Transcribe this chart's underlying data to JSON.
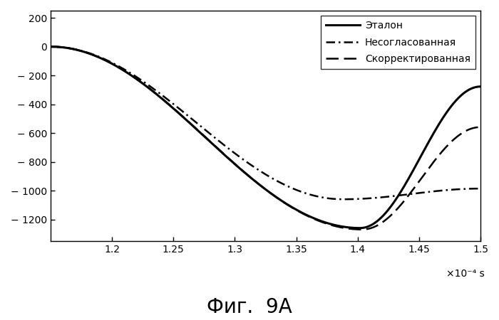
{
  "xlim": [
    0.000115,
    0.00015
  ],
  "ylim": [
    -1350,
    250
  ],
  "xticks": [
    0.00012,
    0.000125,
    0.00013,
    0.000135,
    0.00014,
    0.000145,
    0.00015
  ],
  "xtick_labels": [
    "1.2",
    "1.25",
    "1.3",
    "1.35",
    "1.4",
    "1.45",
    "1.5"
  ],
  "yticks": [
    200,
    0,
    -200,
    -400,
    -600,
    -800,
    -1000,
    -1200
  ],
  "ytick_labels": [
    "200",
    "0",
    "− 200",
    "− 400",
    "− 600",
    "− 800",
    "− 1000",
    "− 1200"
  ],
  "legend_labels": [
    "Эталон",
    "Несогласованная",
    "Скорректированная"
  ],
  "xlabel_text": "×10⁻⁴ s",
  "caption": "Фиг.  9А",
  "background_color": "#ffffff",
  "etalon_lw": 2.2,
  "other_lw": 1.8
}
